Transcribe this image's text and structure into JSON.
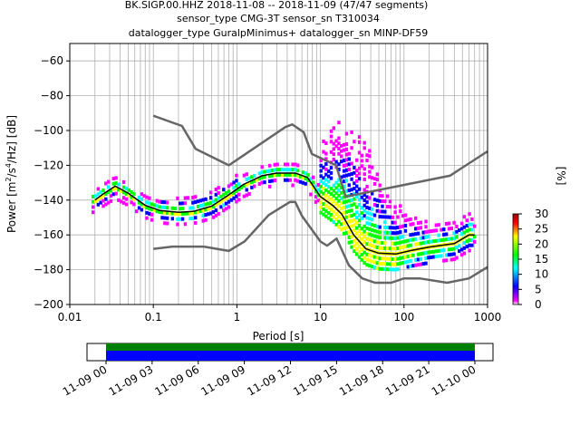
{
  "title_lines": [
    "BK.SIGP.00.HHZ   2018-11-08 -- 2018-11-09  (47/47 segments)",
    "sensor_type CMG-3T sensor_sn T310034",
    "datalogger_type GuralpMinimus+ datalogger_sn MINP-DF59"
  ],
  "colorbar": {
    "label": "[%]",
    "ticks": [
      0,
      5,
      10,
      15,
      20,
      25,
      30
    ],
    "range": [
      0,
      30
    ]
  },
  "chart_data": {
    "type": "heatmap",
    "subtype": "probabilistic power spectral density",
    "xlabel": "Period [s]",
    "ylabel_main": "Power [m",
    "ylabel_sup1": "2",
    "ylabel_mid": "/s",
    "ylabel_sup2": "4",
    "ylabel_end": "/Hz] [dB]",
    "xscale": "log",
    "xlim": [
      0.01,
      1000
    ],
    "ylim": [
      -200,
      -50
    ],
    "x_ticks": [
      0.01,
      0.1,
      1,
      10,
      100,
      1000
    ],
    "x_tick_labels": [
      "0.01",
      "0.1",
      "1",
      "10",
      "100",
      "1000"
    ],
    "y_ticks": [
      -200,
      -180,
      -160,
      -140,
      -120,
      -100,
      -80,
      -60
    ],
    "y_tick_labels": [
      "−200",
      "−180",
      "−160",
      "−140",
      "−120",
      "−100",
      "−80",
      "−60"
    ],
    "grid": true,
    "series": [
      {
        "role": "noise model upper",
        "color": "#666666",
        "points": [
          [
            0.1,
            -91.5
          ],
          [
            0.22,
            -97.4
          ],
          [
            0.32,
            -110.5
          ],
          [
            0.8,
            -120
          ],
          [
            3.8,
            -98
          ],
          [
            4.6,
            -96.5
          ],
          [
            6.3,
            -101
          ],
          [
            7.9,
            -113.5
          ],
          [
            15.4,
            -120
          ],
          [
            20,
            -138
          ],
          [
            354.8,
            -126
          ],
          [
            1000,
            -112
          ]
        ]
      },
      {
        "role": "noise model lower",
        "color": "#666666",
        "points": [
          [
            0.1,
            -168
          ],
          [
            0.17,
            -166.7
          ],
          [
            0.4,
            -166.7
          ],
          [
            0.8,
            -169.2
          ],
          [
            1.24,
            -163.7
          ],
          [
            2.4,
            -148.6
          ],
          [
            4.3,
            -141.1
          ],
          [
            5,
            -141.1
          ],
          [
            6,
            -149
          ],
          [
            10,
            -163.8
          ],
          [
            12,
            -166.2
          ],
          [
            15.6,
            -162.1
          ],
          [
            21.9,
            -177.5
          ],
          [
            31.6,
            -185
          ],
          [
            45,
            -187.5
          ],
          [
            70,
            -187.5
          ],
          [
            100,
            -185
          ],
          [
            154,
            -185
          ],
          [
            328,
            -187.5
          ],
          [
            600,
            -185
          ],
          [
            1000,
            -178.5
          ]
        ]
      },
      {
        "role": "mean",
        "color": "#000000",
        "points": [
          [
            0.02,
            -140
          ],
          [
            0.025,
            -136.5
          ],
          [
            0.035,
            -132
          ],
          [
            0.05,
            -136
          ],
          [
            0.08,
            -143
          ],
          [
            0.12,
            -146
          ],
          [
            0.2,
            -147
          ],
          [
            0.3,
            -146.5
          ],
          [
            0.5,
            -143.5
          ],
          [
            0.8,
            -137
          ],
          [
            1.2,
            -131
          ],
          [
            2,
            -126
          ],
          [
            3,
            -124.5
          ],
          [
            5,
            -124.5
          ],
          [
            7,
            -127
          ],
          [
            10,
            -138
          ],
          [
            14,
            -143
          ],
          [
            18,
            -148
          ],
          [
            25,
            -160
          ],
          [
            35,
            -168
          ],
          [
            50,
            -170.5
          ],
          [
            80,
            -171
          ],
          [
            120,
            -169
          ],
          [
            200,
            -167
          ],
          [
            400,
            -165
          ],
          [
            600,
            -160
          ],
          [
            700,
            -160
          ]
        ]
      }
    ]
  },
  "time_axis": {
    "tick_labels": [
      "11-09 00",
      "11-09 03",
      "11-09 06",
      "11-09 09",
      "11-09 12",
      "11-09 15",
      "11-09 18",
      "11-09 21",
      "11-10 00"
    ],
    "coverage_colors": [
      "#008000",
      "#0000ff"
    ]
  }
}
